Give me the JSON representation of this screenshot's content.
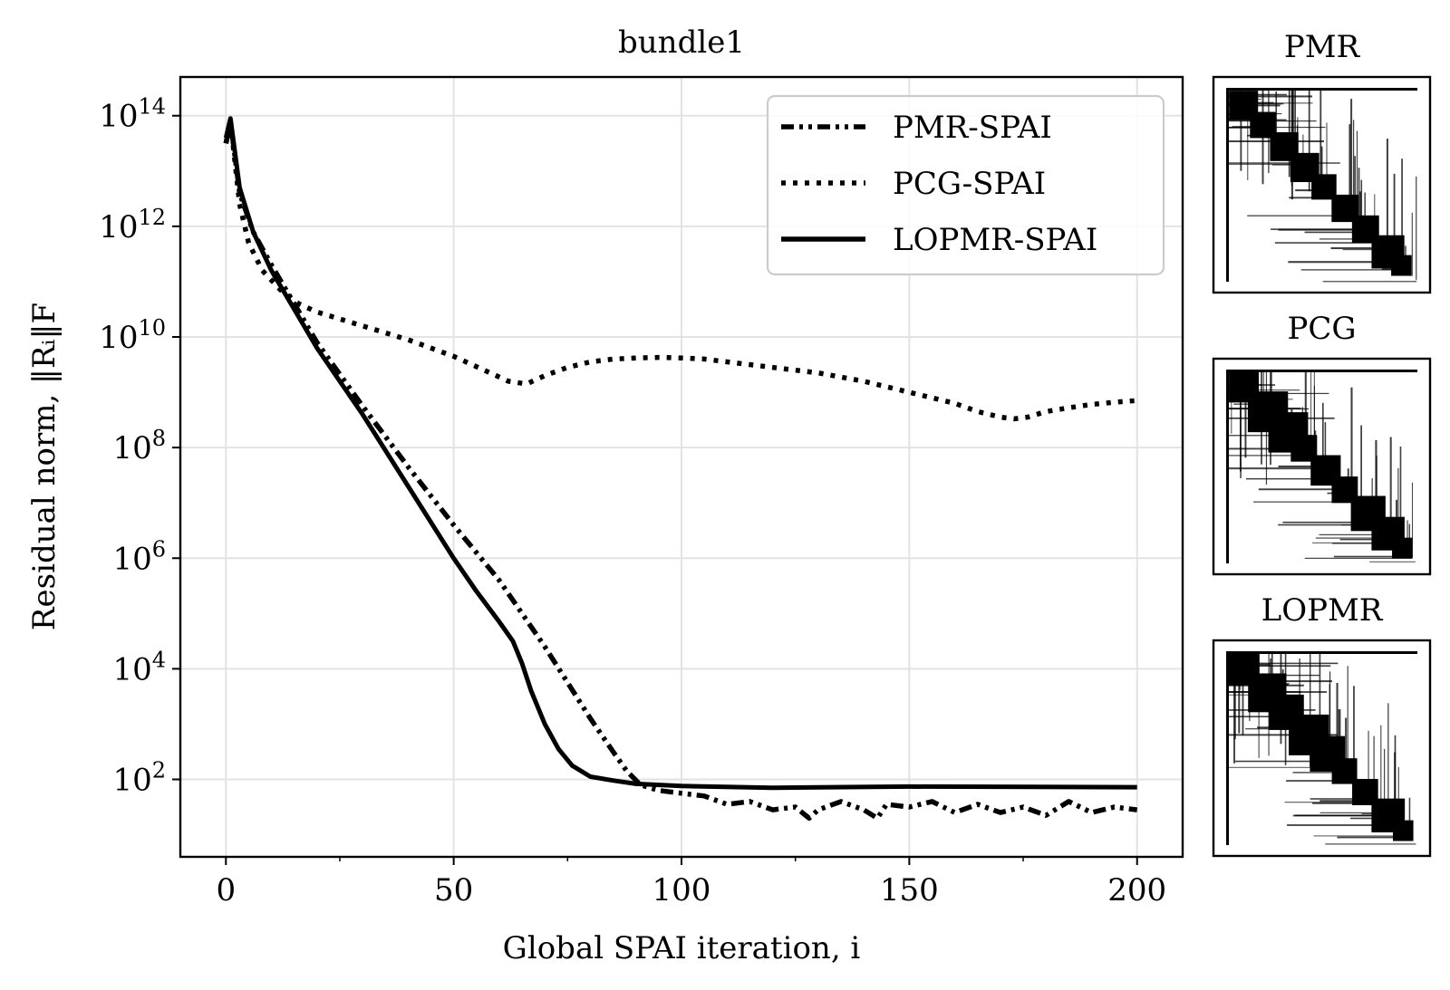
{
  "chart_data": {
    "type": "line",
    "title": "bundle1",
    "xlabel": "Global SPAI iteration, i",
    "ylabel": "Residual norm, ‖Rᵢ‖F",
    "xlim": [
      -10,
      210
    ],
    "ylim_log10": [
      0.6,
      14.7
    ],
    "yscale": "log",
    "grid": true,
    "legend_position": "upper-right",
    "x_ticks": [
      0,
      50,
      100,
      150,
      200
    ],
    "x_tick_labels": [
      "0",
      "50",
      "100",
      "150",
      "200"
    ],
    "y_tick_exponents": [
      2,
      4,
      6,
      8,
      10,
      12,
      14
    ],
    "series": [
      {
        "name": "PMR-SPAI",
        "style": "dashdot",
        "x": [
          0,
          1,
          3,
          6,
          10,
          15,
          20,
          30,
          40,
          50,
          60,
          65,
          70,
          75,
          80,
          85,
          88,
          91,
          95,
          100,
          105,
          110,
          115,
          120,
          125,
          128,
          130,
          135,
          140,
          143,
          145,
          150,
          155,
          160,
          165,
          170,
          175,
          180,
          185,
          190,
          195,
          200
        ],
        "log10_y": [
          13.5,
          13.9,
          12.6,
          11.9,
          11.3,
          10.6,
          9.9,
          8.75,
          7.65,
          6.6,
          5.6,
          5.0,
          4.4,
          3.75,
          3.1,
          2.5,
          2.15,
          1.9,
          1.8,
          1.75,
          1.7,
          1.55,
          1.6,
          1.45,
          1.5,
          1.3,
          1.45,
          1.6,
          1.45,
          1.3,
          1.55,
          1.5,
          1.6,
          1.4,
          1.55,
          1.4,
          1.5,
          1.35,
          1.6,
          1.4,
          1.5,
          1.45
        ]
      },
      {
        "name": "PCG-SPAI",
        "style": "dotted",
        "x": [
          0,
          1,
          3,
          5,
          8,
          12,
          16,
          20,
          30,
          40,
          50,
          58,
          62,
          66,
          70,
          75,
          80,
          85,
          90,
          95,
          100,
          105,
          110,
          120,
          130,
          140,
          150,
          160,
          165,
          170,
          173,
          176,
          180,
          185,
          190,
          195,
          200
        ],
        "log10_y": [
          13.5,
          13.9,
          12.4,
          11.7,
          11.2,
          10.85,
          10.6,
          10.45,
          10.2,
          9.95,
          9.65,
          9.35,
          9.2,
          9.15,
          9.3,
          9.45,
          9.55,
          9.6,
          9.62,
          9.63,
          9.62,
          9.6,
          9.55,
          9.45,
          9.35,
          9.2,
          9.0,
          8.8,
          8.65,
          8.55,
          8.52,
          8.55,
          8.65,
          8.72,
          8.78,
          8.82,
          8.85
        ]
      },
      {
        "name": "LOPMR-SPAI",
        "style": "solid",
        "x": [
          0,
          1,
          3,
          6,
          10,
          15,
          20,
          30,
          40,
          50,
          55,
          60,
          63,
          65,
          67,
          70,
          73,
          76,
          80,
          85,
          90,
          100,
          120,
          150,
          200
        ],
        "log10_y": [
          13.6,
          13.95,
          12.7,
          11.9,
          11.2,
          10.5,
          9.8,
          8.6,
          7.3,
          6.0,
          5.4,
          4.85,
          4.5,
          4.1,
          3.6,
          3.0,
          2.55,
          2.25,
          2.05,
          1.98,
          1.92,
          1.88,
          1.85,
          1.87,
          1.86
        ]
      }
    ]
  },
  "sparsity_panels": [
    {
      "title": "PMR",
      "label": "PMR sparsity pattern"
    },
    {
      "title": "PCG",
      "label": "PCG sparsity pattern"
    },
    {
      "title": "LOPMR",
      "label": "LOPMR sparsity pattern"
    }
  ]
}
